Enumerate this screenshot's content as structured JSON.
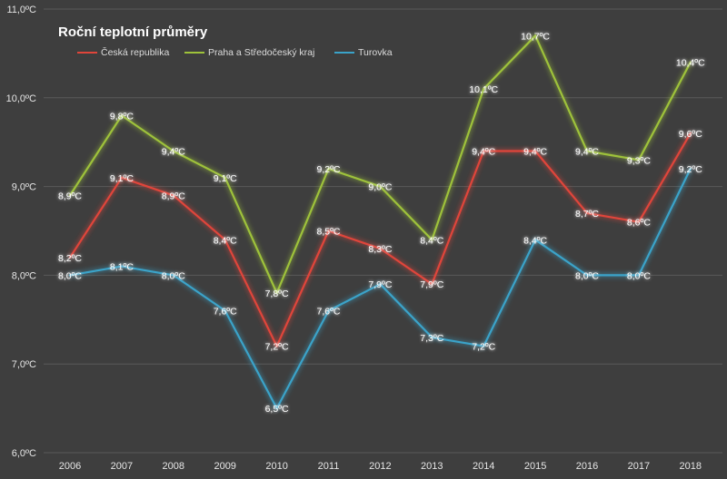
{
  "chart_data": {
    "type": "line",
    "title": "Roční teplotní průměry",
    "xlabel": "",
    "ylabel": "",
    "categories": [
      "2006",
      "2007",
      "2008",
      "2009",
      "2010",
      "2011",
      "2012",
      "2013",
      "2014",
      "2015",
      "2016",
      "2017",
      "2018"
    ],
    "y_ticks": [
      "6,0ºC",
      "7,0ºC",
      "8,0ºC",
      "9,0ºC",
      "10,0ºC",
      "11,0ºC"
    ],
    "ylim": [
      6,
      11
    ],
    "grid": true,
    "legend_position": "top-left",
    "series": [
      {
        "name": "Česká republika",
        "color": "#e0453a",
        "values": [
          8.2,
          9.1,
          8.9,
          8.4,
          7.2,
          8.5,
          8.3,
          7.9,
          9.4,
          9.4,
          8.7,
          8.6,
          9.6
        ],
        "labels": [
          "8,2ºC",
          "9,1ºC",
          "8,9ºC",
          "8,4ºC",
          "7,2ºC",
          "8,5ºC",
          "8,3ºC",
          "7,9ºC",
          "9,4ºC",
          "9,4ºC",
          "8,7ºC",
          "8,6ºC",
          "9,6ºC"
        ]
      },
      {
        "name": "Praha a Středočeský kraj",
        "color": "#9ec23a",
        "values": [
          8.9,
          9.8,
          9.4,
          9.1,
          7.8,
          9.2,
          9.0,
          8.4,
          10.1,
          10.7,
          9.4,
          9.3,
          10.4
        ],
        "labels": [
          "8,9ºC",
          "9,8ºC",
          "9,4ºC",
          "9,1ºC",
          "7,8ºC",
          "9,2ºC",
          "9,0ºC",
          "8,4ºC",
          "10,1ºC",
          "10,7ºC",
          "9,4ºC",
          "9,3ºC",
          "10,4ºC"
        ]
      },
      {
        "name": "Turovka",
        "color": "#3aa3c9",
        "values": [
          8.0,
          8.1,
          8.0,
          7.6,
          6.5,
          7.6,
          7.9,
          7.3,
          7.2,
          8.4,
          8.0,
          8.0,
          9.2
        ],
        "labels": [
          "8,0ºC",
          "8,1ºC",
          "8,0ºC",
          "7,6ºC",
          "6,5ºC",
          "7,6ºC",
          "7,9ºC",
          "7,3ºC",
          "7,2ºC",
          "8,4ºC",
          "8,0ºC",
          "8,0ºC",
          "9,2ºC"
        ]
      }
    ]
  },
  "colors": {
    "background": "#3e3e3e",
    "gridline": "#5a5a5a",
    "axis_text": "#e6e6e6",
    "label_text": "#ffffff"
  }
}
